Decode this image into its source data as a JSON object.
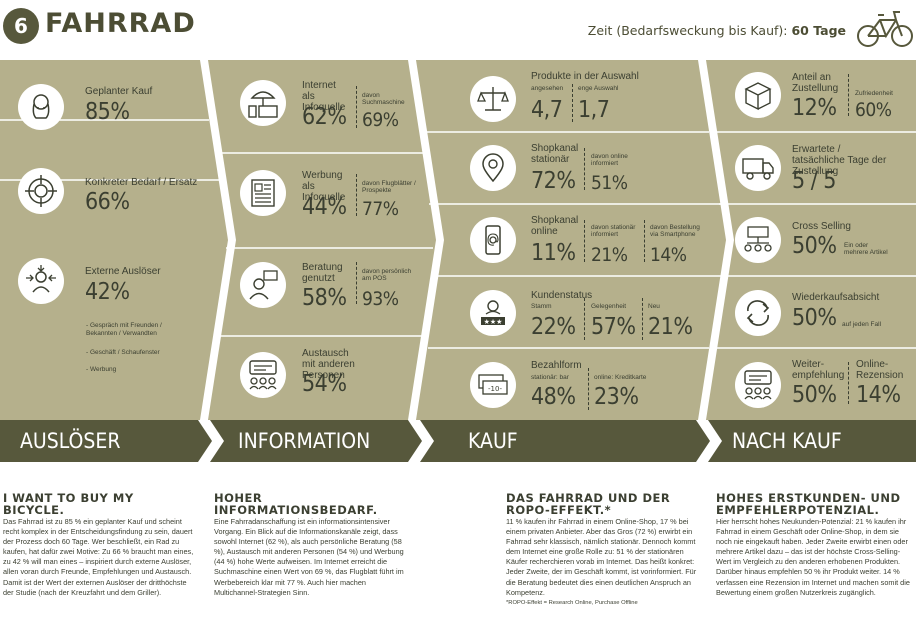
{
  "header": {
    "badge": "6",
    "title": "FAHRRAD",
    "time_label": "Zeit (Bedarfsweckung bis Kauf):",
    "time_value": "60 Tage"
  },
  "colors": {
    "panel": "#b5b08c",
    "panel_dark": "#57583c",
    "text": "#3b3f31"
  },
  "ausloeser": {
    "geplant": {
      "label": "Geplanter Kauf",
      "value": "85%",
      "icon": "head-thought-icon"
    },
    "bedarf": {
      "label": "Konkreter Bedarf / Ersatz",
      "value": "66%",
      "icon": "target-icon"
    },
    "extern": {
      "label": "Externe Auslöser",
      "value": "42%",
      "icon": "person-arrows-icon",
      "bullets": [
        "- Gespräch mit Freunden / Bekannten / Verwandten",
        "- Geschäft / Schaufenster",
        "- Werbung"
      ]
    }
  },
  "information": {
    "internet": {
      "label": "Internet als Infoquelle",
      "value": "62%",
      "sub_label": "davon Suchmaschine",
      "sub_value": "69%",
      "icon": "devices-icon"
    },
    "werbung": {
      "label": "Werbung als Infoquelle",
      "value": "44%",
      "sub_label": "davon Flugblätter / Prospekte",
      "sub_value": "77%",
      "icon": "newspaper-icon"
    },
    "beratung": {
      "label": "Beratung genutzt",
      "value": "58%",
      "sub_label": "davon persönlich am POS",
      "sub_value": "93%",
      "icon": "advisor-icon"
    },
    "austausch": {
      "label": "Austausch mit anderen Personen",
      "value": "54%",
      "icon": "chat-people-icon"
    }
  },
  "kauf": {
    "produkte": {
      "label": "Produkte in der Auswahl",
      "a_label": "angesehen",
      "a_value": "4,7",
      "b_label": "enge Auswahl",
      "b_value": "1,7",
      "icon": "scale-icon"
    },
    "stationaer": {
      "label": "Shopkanal stationär",
      "value": "72%",
      "sub_label": "davon online informiert",
      "sub_value": "51%",
      "icon": "location-pin-icon"
    },
    "online": {
      "label": "Shopkanal online",
      "value": "11%",
      "sub1_label": "davon stationär informiert",
      "sub1_value": "21%",
      "sub2_label": "davon Bestellung via Smartphone",
      "sub2_value": "14%",
      "icon": "smartphone-at-icon"
    },
    "kundenstatus": {
      "label": "Kundenstatus",
      "a_label": "Stamm",
      "a_value": "22%",
      "b_label": "Gelegenheit",
      "b_value": "57%",
      "c_label": "Neu",
      "c_value": "21%",
      "icon": "customer-rating-icon"
    },
    "bezahl": {
      "label": "Bezahlform",
      "a_label": "stationär: bar",
      "a_value": "48%",
      "b_label": "online: Kreditkarte",
      "b_value": "23%",
      "icon": "cash-icon"
    }
  },
  "nachkauf": {
    "zustellung": {
      "label": "Anteil an Zustellung",
      "value": "12%",
      "sub_label": "Zufriedenheit",
      "sub_value": "60%",
      "icon": "package-icon"
    },
    "tage": {
      "label": "Erwartete / tatsächliche Tage der Zustellung",
      "value": "5 / 5",
      "icon": "truck-icon"
    },
    "cross": {
      "label": "Cross Selling",
      "value": "50%",
      "sub_label": "Ein oder mehrere Artikel",
      "icon": "flowchart-icon"
    },
    "wieder": {
      "label": "Wiederkaufsabsicht",
      "value": "50%",
      "sub_label": "auf jeden Fall",
      "icon": "repeat-icon"
    },
    "empf": {
      "label": "Weiter-empfehlung",
      "value": "50%",
      "sub_label": "Online-Rezension",
      "sub_value": "14%",
      "icon": "chat-people-icon"
    }
  },
  "stages": [
    "AUSLÖSER",
    "INFORMATION",
    "KAUF",
    "NACH KAUF"
  ],
  "texts": {
    "c1": {
      "title": "I WANT TO BUY MY BICYCLE.",
      "body": "Das Fahrrad ist zu 85 % ein geplanter Kauf und scheint recht komplex in der Entscheidungsfindung zu sein, dauert der Prozess doch 60 Tage. Wer beschließt, ein Rad zu kaufen, hat dafür zwei Motive: Zu 66 % braucht man eines, zu 42 % will man eines – inspiriert durch externe Auslöser, allen voran durch Freunde, Empfehlungen und Austausch. Damit ist der Wert der externen Auslöser der dritthöchste der Studie (nach der Kreuzfahrt und dem Griller)."
    },
    "c2": {
      "title": "HOHER INFORMATIONSBEDARF.",
      "body": "Eine Fahrradanschaffung ist ein informationsintensiver Vorgang. Ein Blick auf die Informationskanäle zeigt, dass sowohl Internet (62 %), als auch persönliche Beratung (58 %), Austausch mit anderen Personen (54 %) und Werbung (44 %) hohe Werte aufweisen. Im Internet erreicht die Suchmaschine einen Wert von 69 %, das Flugblatt führt im Werbebereich klar mit 77 %. Auch hier machen Multichannel-Strategien Sinn."
    },
    "c3": {
      "title": "DAS FAHRRAD UND DER ROPO-EFFEKT.*",
      "body": "11 % kaufen ihr Fahrrad in einem Online-Shop, 17 % bei einem privaten Anbieter. Aber das Gros (72 %) erwirbt ein Fahrrad sehr klassisch, nämlich stationär. Dennoch kommt dem Internet eine große Rolle zu: 51 % der stationären Käufer recherchieren vorab im Internet. Das heißt konkret: Jeder Zweite, der im Geschäft kommt, ist vorinformiert. Für die Beratung bedeutet dies einen deutlichen Anspruch an Kompetenz.",
      "footnote": "*ROPO-Effekt = Research Online, Purchase Offline"
    },
    "c4": {
      "title": "HOHES ERSTKUNDEN- UND EMPFEHLERPOTENZIAL.",
      "body": "Hier herrscht hohes Neukunden-Potenzial: 21 % kaufen ihr Fahrrad in einem Geschäft oder Online-Shop, in dem sie noch nie eingekauft haben. Jeder Zweite erwirbt einen oder mehrere Artikel dazu – das ist der höchste Cross-Selling-Wert im Vergleich zu den anderen erhobenen Produkten. Darüber hinaus empfehlen 50 % ihr Produkt weiter. 14 % verfassen eine Rezension im Internet und machen somit die Bewertung einem großen Nutzerkreis zugänglich."
    }
  }
}
